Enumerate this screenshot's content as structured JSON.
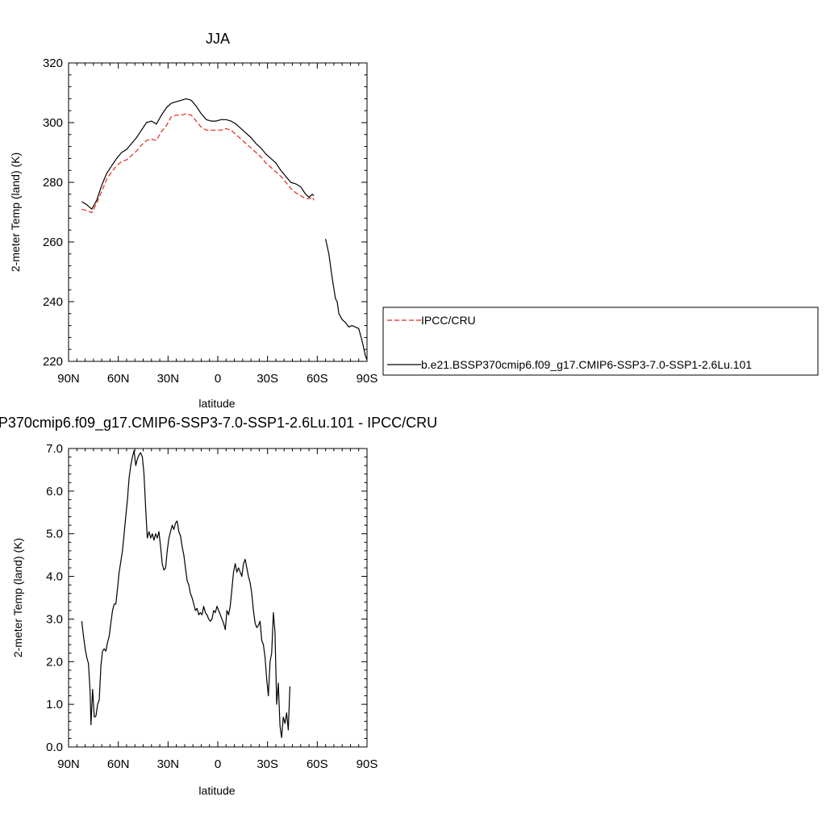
{
  "chart_data": [
    {
      "type": "line",
      "title": "JJA",
      "xlabel": "latitude",
      "ylabel": "2-meter Temp (land) (K)",
      "xlim": [
        90,
        -90
      ],
      "ylim": [
        220,
        320
      ],
      "x_ticks": [
        {
          "value": 90,
          "label": "90N"
        },
        {
          "value": 60,
          "label": "60N"
        },
        {
          "value": 30,
          "label": "30N"
        },
        {
          "value": 0,
          "label": "0"
        },
        {
          "value": -30,
          "label": "30S"
        },
        {
          "value": -60,
          "label": "60S"
        },
        {
          "value": -90,
          "label": "90S"
        }
      ],
      "y_ticks": [
        {
          "value": 220,
          "label": "220"
        },
        {
          "value": 240,
          "label": "240"
        },
        {
          "value": 260,
          "label": "260"
        },
        {
          "value": 280,
          "label": "280"
        },
        {
          "value": 300,
          "label": "300"
        },
        {
          "value": 320,
          "label": "320"
        }
      ],
      "legend_position": "right",
      "series": [
        {
          "name": "IPCC/CRU",
          "color": "#e8261c",
          "dash": "dashed",
          "points": [
            [
              82,
              271
            ],
            [
              79,
              270.5
            ],
            [
              76,
              269.8
            ],
            [
              73,
              273
            ],
            [
              70,
              277
            ],
            [
              67,
              281
            ],
            [
              64,
              283.5
            ],
            [
              61,
              285.5
            ],
            [
              58,
              287
            ],
            [
              55,
              287.5
            ],
            [
              52,
              289
            ],
            [
              49,
              290.5
            ],
            [
              46,
              292.5
            ],
            [
              43,
              294
            ],
            [
              40,
              294.5
            ],
            [
              37,
              294
            ],
            [
              34,
              297
            ],
            [
              31,
              299
            ],
            [
              28,
              302
            ],
            [
              25,
              302.5
            ],
            [
              22,
              302.5
            ],
            [
              19,
              303
            ],
            [
              16,
              302.5
            ],
            [
              13,
              300.5
            ],
            [
              10,
              298.5
            ],
            [
              7,
              297.5
            ],
            [
              4,
              297.5
            ],
            [
              1,
              297.5
            ],
            [
              -2,
              297.5
            ],
            [
              -5,
              298
            ],
            [
              -8,
              297.5
            ],
            [
              -11,
              296
            ],
            [
              -14,
              294.5
            ],
            [
              -17,
              293
            ],
            [
              -20,
              291.5
            ],
            [
              -23,
              290
            ],
            [
              -26,
              288.5
            ],
            [
              -29,
              286.5
            ],
            [
              -32,
              285
            ],
            [
              -35,
              283.5
            ],
            [
              -38,
              282
            ],
            [
              -41,
              280
            ],
            [
              -44,
              278
            ],
            [
              -47,
              276.5
            ],
            [
              -50,
              275.5
            ],
            [
              -53,
              274.5
            ],
            [
              -55,
              274.5
            ],
            [
              -57,
              275
            ],
            [
              -58,
              274
            ]
          ]
        },
        {
          "name": "b.e21.BSSP370cmip6.f09_g17.CMIP6-SSP3-7.0-SSP1-2.6Lu.101",
          "color": "#000000",
          "dash": "solid",
          "points": [
            [
              82,
              273.5
            ],
            [
              79,
              272.5
            ],
            [
              76,
              271
            ],
            [
              73,
              274
            ],
            [
              70,
              279
            ],
            [
              67,
              283
            ],
            [
              64,
              285.5
            ],
            [
              61,
              288
            ],
            [
              58,
              290
            ],
            [
              55,
              291
            ],
            [
              52,
              293
            ],
            [
              49,
              295
            ],
            [
              46,
              297.5
            ],
            [
              43,
              300
            ],
            [
              40,
              300.5
            ],
            [
              37,
              299.5
            ],
            [
              34,
              302.5
            ],
            [
              31,
              305
            ],
            [
              28,
              306.5
            ],
            [
              25,
              307
            ],
            [
              22,
              307.5
            ],
            [
              19,
              308
            ],
            [
              16,
              307.5
            ],
            [
              13,
              305.5
            ],
            [
              10,
              303
            ],
            [
              7,
              301
            ],
            [
              4,
              300.5
            ],
            [
              1,
              300.5
            ],
            [
              -2,
              301
            ],
            [
              -5,
              301
            ],
            [
              -8,
              300.5
            ],
            [
              -11,
              299.5
            ],
            [
              -14,
              298
            ],
            [
              -17,
              296.5
            ],
            [
              -20,
              295
            ],
            [
              -23,
              293
            ],
            [
              -26,
              291.5
            ],
            [
              -29,
              289.5
            ],
            [
              -32,
              288
            ],
            [
              -35,
              286.5
            ],
            [
              -38,
              284
            ],
            [
              -41,
              282
            ],
            [
              -44,
              280
            ],
            [
              -47,
              279.5
            ],
            [
              -50,
              278.5
            ],
            [
              -53,
              276
            ],
            [
              -55,
              275
            ],
            [
              -57,
              276
            ],
            [
              -58,
              275.5
            ],
            [
              null,
              null
            ],
            [
              -65,
              261
            ],
            [
              -67,
              256
            ],
            [
              -69,
              248
            ],
            [
              -71,
              241
            ],
            [
              -72,
              240
            ],
            [
              -73,
              236
            ],
            [
              -75,
              234
            ],
            [
              -77,
              233
            ],
            [
              -79,
              231.5
            ],
            [
              -81,
              232
            ],
            [
              -83,
              231.5
            ],
            [
              -85,
              231
            ],
            [
              -87,
              227
            ],
            [
              -89,
              222
            ],
            [
              -90,
              220.5
            ]
          ]
        }
      ]
    },
    {
      "type": "line",
      "title": "P370cmip6.f09_g17.CMIP6-SSP3-7.0-SSP1-2.6Lu.101 - IPCC/CRU",
      "xlabel": "latitude",
      "ylabel": "2-meter Temp (land) (K)",
      "xlim": [
        90,
        -90
      ],
      "ylim": [
        0,
        7
      ],
      "x_ticks": [
        {
          "value": 90,
          "label": "90N"
        },
        {
          "value": 60,
          "label": "60N"
        },
        {
          "value": 30,
          "label": "30N"
        },
        {
          "value": 0,
          "label": "0"
        },
        {
          "value": -30,
          "label": "30S"
        },
        {
          "value": -60,
          "label": "60S"
        },
        {
          "value": -90,
          "label": "90S"
        }
      ],
      "y_ticks": [
        {
          "value": 0,
          "label": "0.0"
        },
        {
          "value": 1,
          "label": "1.0"
        },
        {
          "value": 2,
          "label": "2.0"
        },
        {
          "value": 3,
          "label": "3.0"
        },
        {
          "value": 4,
          "label": "4.0"
        },
        {
          "value": 5,
          "label": "5.0"
        },
        {
          "value": 6,
          "label": "6.0"
        },
        {
          "value": 7,
          "label": "7.0"
        }
      ],
      "series": [
        {
          "color": "#000000",
          "dash": "solid",
          "points": [
            [
              82,
              2.95
            ],
            [
              81,
              2.6
            ],
            [
              80,
              2.3
            ],
            [
              79,
              2.1
            ],
            [
              78,
              1.95
            ],
            [
              77,
              1.3
            ],
            [
              76.5,
              0.52
            ],
            [
              75.5,
              1.35
            ],
            [
              74.5,
              0.7
            ],
            [
              73.5,
              0.72
            ],
            [
              72.5,
              1.0
            ],
            [
              71.5,
              1.1
            ],
            [
              70.5,
              1.9
            ],
            [
              69.5,
              2.25
            ],
            [
              68.5,
              2.3
            ],
            [
              67.5,
              2.25
            ],
            [
              66.5,
              2.45
            ],
            [
              65.5,
              2.6
            ],
            [
              64.5,
              2.9
            ],
            [
              63.5,
              3.2
            ],
            [
              62.5,
              3.35
            ],
            [
              61.5,
              3.35
            ],
            [
              60.5,
              3.7
            ],
            [
              59.5,
              4.1
            ],
            [
              58.5,
              4.35
            ],
            [
              57.5,
              4.6
            ],
            [
              56.5,
              5.0
            ],
            [
              55.5,
              5.4
            ],
            [
              54.5,
              5.8
            ],
            [
              53.5,
              6.3
            ],
            [
              52.5,
              6.6
            ],
            [
              51.5,
              6.8
            ],
            [
              50.5,
              6.95
            ],
            [
              49.5,
              6.6
            ],
            [
              48.5,
              6.75
            ],
            [
              47.5,
              6.85
            ],
            [
              46.5,
              6.9
            ],
            [
              45.5,
              6.8
            ],
            [
              44.5,
              6.4
            ],
            [
              43.5,
              5.6
            ],
            [
              42.5,
              4.9
            ],
            [
              41.5,
              5.05
            ],
            [
              40.5,
              4.9
            ],
            [
              39.5,
              5.0
            ],
            [
              38.5,
              4.85
            ],
            [
              37.5,
              5.0
            ],
            [
              36.5,
              4.9
            ],
            [
              35.5,
              5.05
            ],
            [
              34.5,
              4.7
            ],
            [
              33.5,
              4.3
            ],
            [
              32.5,
              4.15
            ],
            [
              31.5,
              4.2
            ],
            [
              30.5,
              4.6
            ],
            [
              29.5,
              4.9
            ],
            [
              28.5,
              5.05
            ],
            [
              27.5,
              5.2
            ],
            [
              26.5,
              5.1
            ],
            [
              25.5,
              5.25
            ],
            [
              24.5,
              5.3
            ],
            [
              23.5,
              5.05
            ],
            [
              22.5,
              4.95
            ],
            [
              21.5,
              4.7
            ],
            [
              20.5,
              4.5
            ],
            [
              19.5,
              4.2
            ],
            [
              18.5,
              3.9
            ],
            [
              17.5,
              3.8
            ],
            [
              16.5,
              3.6
            ],
            [
              15.5,
              3.5
            ],
            [
              14.5,
              3.35
            ],
            [
              13.5,
              3.2
            ],
            [
              12.5,
              3.25
            ],
            [
              11.5,
              3.1
            ],
            [
              10.5,
              3.15
            ],
            [
              9.5,
              3.1
            ],
            [
              8.5,
              3.3
            ],
            [
              7.5,
              3.15
            ],
            [
              6.5,
              3.1
            ],
            [
              5.5,
              3.0
            ],
            [
              4.5,
              2.95
            ],
            [
              3.5,
              3.0
            ],
            [
              2.5,
              3.2
            ],
            [
              1.5,
              3.15
            ],
            [
              0.5,
              3.3
            ],
            [
              -0.5,
              3.2
            ],
            [
              -1.5,
              3.1
            ],
            [
              -2.5,
              3.0
            ],
            [
              -3.5,
              2.9
            ],
            [
              -4.5,
              2.75
            ],
            [
              -5.5,
              3.2
            ],
            [
              -6.5,
              3.1
            ],
            [
              -7.5,
              3.3
            ],
            [
              -8.5,
              3.7
            ],
            [
              -9.5,
              4.1
            ],
            [
              -10.5,
              4.3
            ],
            [
              -11.5,
              4.1
            ],
            [
              -12.5,
              4.2
            ],
            [
              -13.5,
              4.1
            ],
            [
              -14.5,
              4.0
            ],
            [
              -15.5,
              4.3
            ],
            [
              -16.5,
              4.4
            ],
            [
              -17.5,
              4.2
            ],
            [
              -18.5,
              4.0
            ],
            [
              -19.5,
              3.85
            ],
            [
              -20.5,
              3.6
            ],
            [
              -21.5,
              3.2
            ],
            [
              -22.5,
              2.9
            ],
            [
              -23.5,
              2.8
            ],
            [
              -24.5,
              2.85
            ],
            [
              -25.5,
              2.95
            ],
            [
              -26.5,
              2.5
            ],
            [
              -27.5,
              2.4
            ],
            [
              -28.5,
              2.1
            ],
            [
              -29.5,
              1.6
            ],
            [
              -30.5,
              1.2
            ],
            [
              -31.5,
              2.0
            ],
            [
              -32.5,
              2.2
            ],
            [
              -33.5,
              3.15
            ],
            [
              -34.5,
              2.7
            ],
            [
              -35.5,
              1.0
            ],
            [
              -36.5,
              1.5
            ],
            [
              -37.5,
              0.5
            ],
            [
              -38.5,
              0.22
            ],
            [
              -39.5,
              0.7
            ],
            [
              -40.5,
              0.55
            ],
            [
              -41.5,
              0.8
            ],
            [
              -42.5,
              0.4
            ],
            [
              -43.5,
              1.42
            ]
          ]
        }
      ]
    }
  ]
}
